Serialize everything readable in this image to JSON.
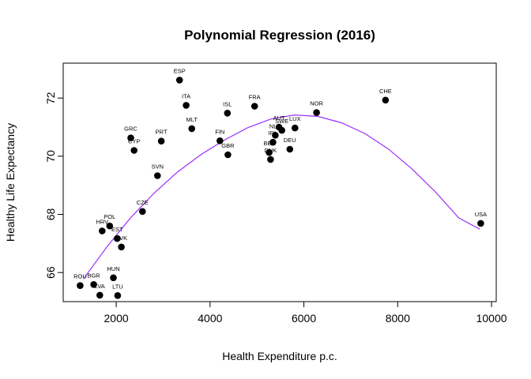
{
  "chart_data": {
    "type": "scatter",
    "title": "Polynomial Regression (2016)",
    "xlabel": "Health Expenditure p.c.",
    "ylabel": "Healthy Life Expectancy",
    "xlim": [
      870,
      10100
    ],
    "ylim": [
      65.0,
      73.2
    ],
    "xticks": [
      2000,
      4000,
      6000,
      8000,
      10000
    ],
    "yticks": [
      66,
      68,
      70,
      72
    ],
    "grid": false,
    "fit_color": "#9b30ff",
    "point_color": "#000000",
    "points": [
      {
        "label": "ESP",
        "x": 3350,
        "y": 72.62
      },
      {
        "label": "ITA",
        "x": 3490,
        "y": 71.75
      },
      {
        "label": "ISL",
        "x": 4370,
        "y": 71.48
      },
      {
        "label": "FRA",
        "x": 4950,
        "y": 71.72
      },
      {
        "label": "NOR",
        "x": 6270,
        "y": 71.5
      },
      {
        "label": "CHE",
        "x": 7740,
        "y": 71.93
      },
      {
        "label": "MLT",
        "x": 3610,
        "y": 70.95
      },
      {
        "label": "AUT",
        "x": 5470,
        "y": 71.0
      },
      {
        "label": "LUX",
        "x": 5810,
        "y": 70.97
      },
      {
        "label": "SWE",
        "x": 5530,
        "y": 70.89
      },
      {
        "label": "NLD",
        "x": 5390,
        "y": 70.72
      },
      {
        "label": "IRL",
        "x": 5340,
        "y": 70.48
      },
      {
        "label": "FIN",
        "x": 4210,
        "y": 70.53
      },
      {
        "label": "GBR",
        "x": 4380,
        "y": 70.05
      },
      {
        "label": "BEL",
        "x": 5260,
        "y": 70.13
      },
      {
        "label": "DNK",
        "x": 5290,
        "y": 69.89
      },
      {
        "label": "DEU",
        "x": 5700,
        "y": 70.24
      },
      {
        "label": "GRC",
        "x": 2310,
        "y": 70.63
      },
      {
        "label": "CYP",
        "x": 2380,
        "y": 70.2
      },
      {
        "label": "PRT",
        "x": 2960,
        "y": 70.52
      },
      {
        "label": "SVN",
        "x": 2880,
        "y": 69.33
      },
      {
        "label": "CZE",
        "x": 2560,
        "y": 68.1
      },
      {
        "label": "POL",
        "x": 1860,
        "y": 67.6
      },
      {
        "label": "HRV",
        "x": 1700,
        "y": 67.43
      },
      {
        "label": "EST",
        "x": 2020,
        "y": 67.17
      },
      {
        "label": "SVK",
        "x": 2110,
        "y": 66.88
      },
      {
        "label": "HUN",
        "x": 1940,
        "y": 65.82
      },
      {
        "label": "ROU",
        "x": 1230,
        "y": 65.55
      },
      {
        "label": "BGR",
        "x": 1520,
        "y": 65.59
      },
      {
        "label": "LVA",
        "x": 1650,
        "y": 65.22
      },
      {
        "label": "LTU",
        "x": 2030,
        "y": 65.21
      },
      {
        "label": "USA",
        "x": 9770,
        "y": 67.69
      }
    ],
    "fit": {
      "x": [
        1300,
        1800,
        2300,
        2800,
        3300,
        3800,
        4300,
        4800,
        5300,
        5800,
        6300,
        6800,
        7300,
        7800,
        8300,
        8800,
        9300,
        9750
      ],
      "y": [
        65.78,
        66.88,
        67.87,
        68.72,
        69.45,
        70.05,
        70.55,
        70.98,
        71.28,
        71.42,
        71.37,
        71.15,
        70.78,
        70.25,
        69.57,
        68.78,
        67.88,
        67.49
      ]
    }
  }
}
